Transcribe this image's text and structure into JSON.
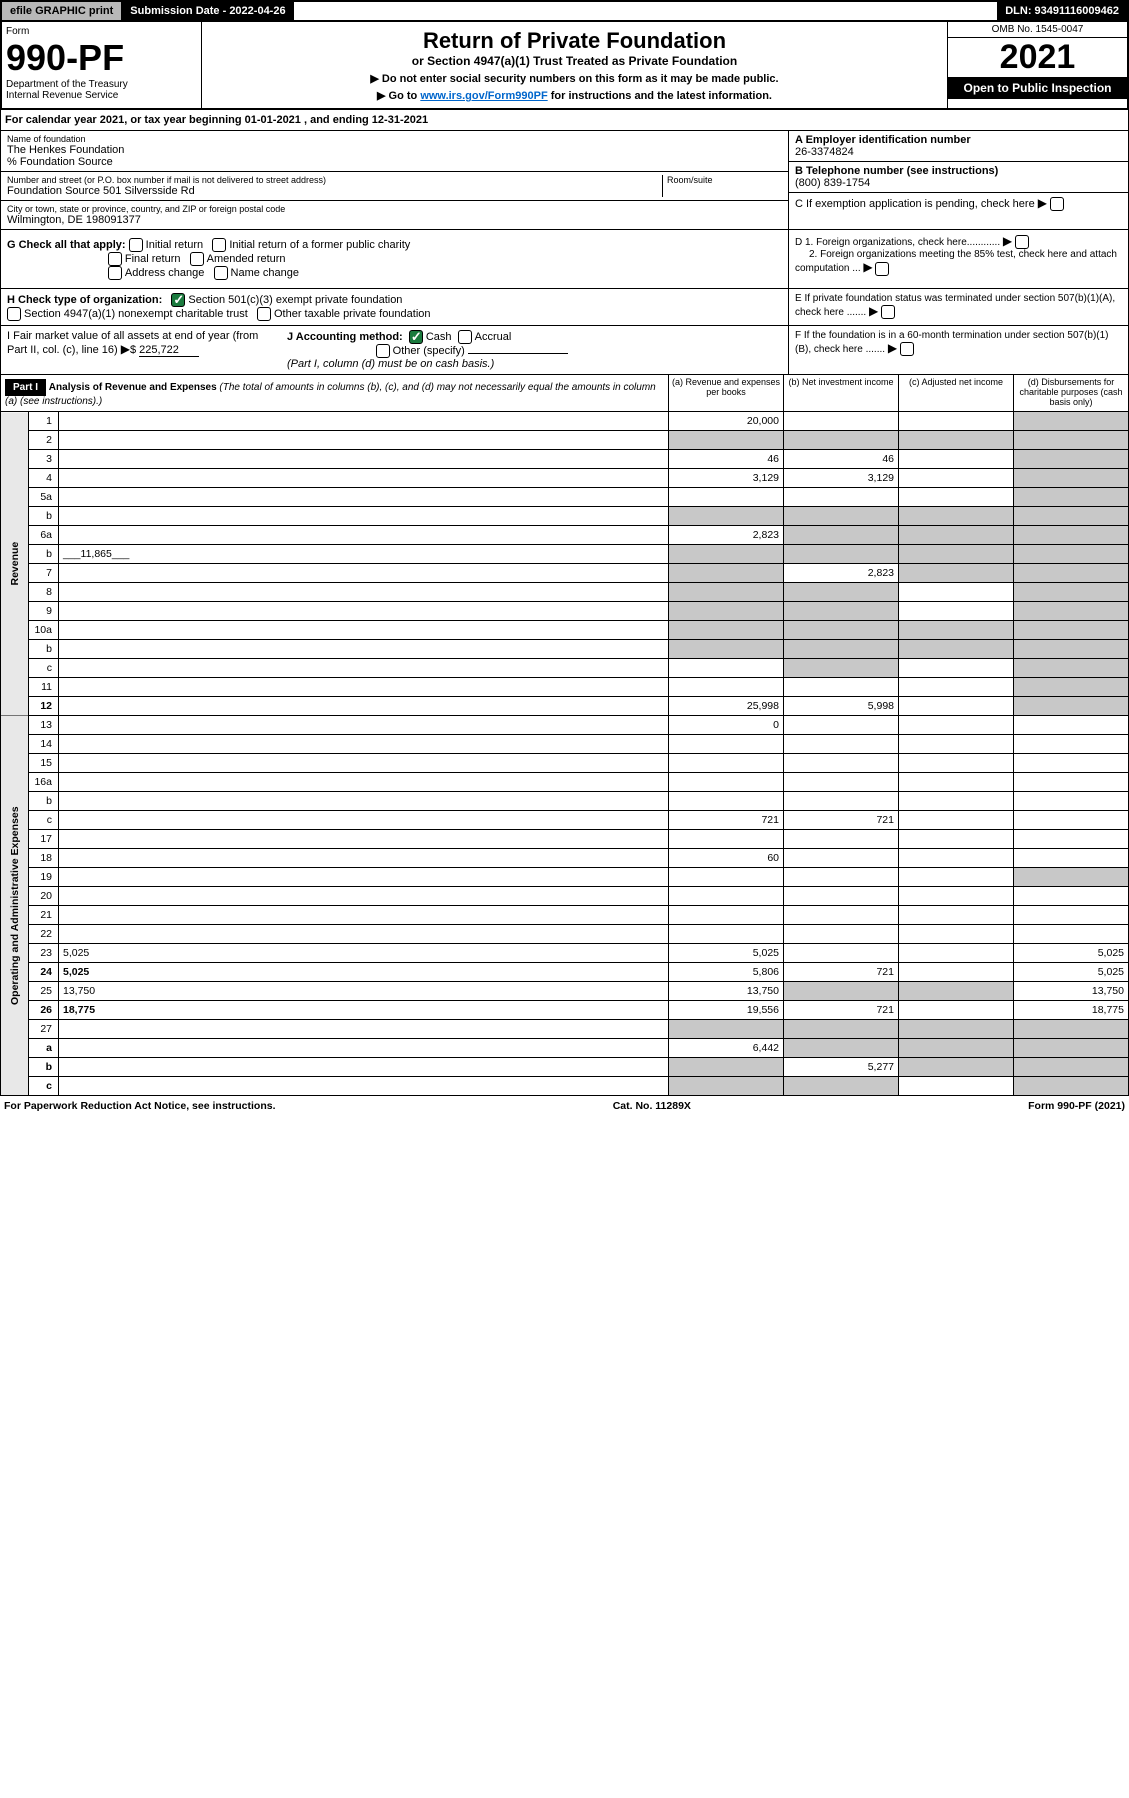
{
  "top": {
    "efile": "efile GRAPHIC print",
    "submission": "Submission Date - 2022-04-26",
    "dln": "DLN: 93491116009462"
  },
  "header": {
    "form_label": "Form",
    "form_num": "990-PF",
    "dept": "Department of the Treasury",
    "irs": "Internal Revenue Service",
    "title": "Return of Private Foundation",
    "subtitle": "or Section 4947(a)(1) Trust Treated as Private Foundation",
    "note1": "▶ Do not enter social security numbers on this form as it may be made public.",
    "note2_pre": "▶ Go to ",
    "note2_link": "www.irs.gov/Form990PF",
    "note2_post": " for instructions and the latest information.",
    "omb": "OMB No. 1545-0047",
    "year": "2021",
    "inspection": "Open to Public Inspection"
  },
  "calyear": "For calendar year 2021, or tax year beginning 01-01-2021                    , and ending 12-31-2021",
  "foundation": {
    "name_label": "Name of foundation",
    "name": "The Henkes Foundation",
    "care_of": "% Foundation Source",
    "addr_label": "Number and street (or P.O. box number if mail is not delivered to street address)",
    "addr": "Foundation Source 501 Silversside Rd",
    "room_label": "Room/suite",
    "city_label": "City or town, state or province, country, and ZIP or foreign postal code",
    "city": "Wilmington, DE  198091377",
    "ein_label": "A Employer identification number",
    "ein": "26-3374824",
    "phone_label": "B Telephone number (see instructions)",
    "phone": "(800) 839-1754",
    "c_label": "C If exemption application is pending, check here",
    "d1": "D 1. Foreign organizations, check here............",
    "d2": "2. Foreign organizations meeting the 85% test, check here and attach computation ...",
    "e": "E  If private foundation status was terminated under section 507(b)(1)(A), check here .......",
    "f": "F  If the foundation is in a 60-month termination under section 507(b)(1)(B), check here .......",
    "g_label": "G Check all that apply:",
    "g_initial": "Initial return",
    "g_initial_former": "Initial return of a former public charity",
    "g_final": "Final return",
    "g_amended": "Amended return",
    "g_address": "Address change",
    "g_name": "Name change",
    "h_label": "H Check type of organization:",
    "h_501c3": "Section 501(c)(3) exempt private foundation",
    "h_4947": "Section 4947(a)(1) nonexempt charitable trust",
    "h_other": "Other taxable private foundation",
    "i_label": "I Fair market value of all assets at end of year (from Part II, col. (c), line 16)",
    "i_val": "225,722",
    "j_label": "J Accounting method:",
    "j_cash": "Cash",
    "j_accrual": "Accrual",
    "j_other": "Other (specify)",
    "j_note": "(Part I, column (d) must be on cash basis.)"
  },
  "part1": {
    "label": "Part I",
    "title": "Analysis of Revenue and Expenses",
    "title_note": "(The total of amounts in columns (b), (c), and (d) may not necessarily equal the amounts in column (a) (see instructions).)",
    "col_a": "(a)   Revenue and expenses per books",
    "col_b": "(b)  Net investment income",
    "col_c": "(c)  Adjusted net income",
    "col_d": "(d)  Disbursements for charitable purposes (cash basis only)"
  },
  "sections": {
    "revenue": "Revenue",
    "opexp": "Operating and Administrative Expenses"
  },
  "lines": [
    {
      "n": "1",
      "d": "",
      "a": "20,000",
      "b": "",
      "c": "",
      "shade_c": false,
      "shade_d": true
    },
    {
      "n": "2",
      "d": "",
      "a": "",
      "b": "",
      "c": "",
      "shade_a": true,
      "shade_b": true,
      "shade_c": true,
      "shade_d": true,
      "dots": true
    },
    {
      "n": "3",
      "d": "",
      "a": "46",
      "b": "46",
      "c": "",
      "shade_d": true
    },
    {
      "n": "4",
      "d": "",
      "a": "3,129",
      "b": "3,129",
      "c": "",
      "shade_d": true,
      "dots": true
    },
    {
      "n": "5a",
      "d": "",
      "a": "",
      "b": "",
      "c": "",
      "shade_d": true,
      "dots": true
    },
    {
      "n": "b",
      "d": "",
      "a": "",
      "b": "",
      "c": "",
      "shade_a": true,
      "shade_b": true,
      "shade_c": true,
      "shade_d": true,
      "inline_box": true
    },
    {
      "n": "6a",
      "d": "",
      "a": "2,823",
      "b": "",
      "c": "",
      "shade_b": true,
      "shade_c": true,
      "shade_d": true
    },
    {
      "n": "b",
      "d": "",
      "a": "",
      "b": "",
      "c": "",
      "shade_a": true,
      "shade_b": true,
      "shade_c": true,
      "shade_d": true,
      "inline_val": "11,865"
    },
    {
      "n": "7",
      "d": "",
      "a": "",
      "b": "2,823",
      "c": "",
      "shade_a": true,
      "shade_c": true,
      "shade_d": true,
      "dots": true
    },
    {
      "n": "8",
      "d": "",
      "a": "",
      "b": "",
      "c": "",
      "shade_a": true,
      "shade_b": true,
      "shade_d": true,
      "dots": true
    },
    {
      "n": "9",
      "d": "",
      "a": "",
      "b": "",
      "c": "",
      "shade_a": true,
      "shade_b": true,
      "shade_d": true,
      "dots": true
    },
    {
      "n": "10a",
      "d": "",
      "a": "",
      "b": "",
      "c": "",
      "shade_a": true,
      "shade_b": true,
      "shade_c": true,
      "shade_d": true,
      "inline_box": true
    },
    {
      "n": "b",
      "d": "",
      "a": "",
      "b": "",
      "c": "",
      "shade_a": true,
      "shade_b": true,
      "shade_c": true,
      "shade_d": true,
      "inline_box": true,
      "dots": true
    },
    {
      "n": "c",
      "d": "",
      "a": "",
      "b": "",
      "c": "",
      "shade_b": true,
      "shade_d": true,
      "dots": true
    },
    {
      "n": "11",
      "d": "",
      "a": "",
      "b": "",
      "c": "",
      "shade_d": true,
      "dots": true
    },
    {
      "n": "12",
      "d": "",
      "a": "25,998",
      "b": "5,998",
      "c": "",
      "shade_d": true,
      "bold": true,
      "dots": true
    },
    {
      "n": "13",
      "d": "",
      "a": "0",
      "b": "",
      "c": ""
    },
    {
      "n": "14",
      "d": "",
      "a": "",
      "b": "",
      "c": "",
      "dots": true
    },
    {
      "n": "15",
      "d": "",
      "a": "",
      "b": "",
      "c": "",
      "dots": true
    },
    {
      "n": "16a",
      "d": "",
      "a": "",
      "b": "",
      "c": "",
      "dots": true
    },
    {
      "n": "b",
      "d": "",
      "a": "",
      "b": "",
      "c": "",
      "dots": true
    },
    {
      "n": "c",
      "d": "",
      "a": "721",
      "b": "721",
      "c": "",
      "dots": true
    },
    {
      "n": "17",
      "d": "",
      "a": "",
      "b": "",
      "c": "",
      "dots": true
    },
    {
      "n": "18",
      "d": "",
      "a": "60",
      "b": "",
      "c": "",
      "dots": true
    },
    {
      "n": "19",
      "d": "",
      "a": "",
      "b": "",
      "c": "",
      "shade_d": true,
      "dots": true
    },
    {
      "n": "20",
      "d": "",
      "a": "",
      "b": "",
      "c": "",
      "dots": true
    },
    {
      "n": "21",
      "d": "",
      "a": "",
      "b": "",
      "c": "",
      "dots": true
    },
    {
      "n": "22",
      "d": "",
      "a": "",
      "b": "",
      "c": "",
      "dots": true
    },
    {
      "n": "23",
      "d": "5,025",
      "a": "5,025",
      "b": "",
      "c": "",
      "dots": true
    },
    {
      "n": "24",
      "d": "5,025",
      "a": "5,806",
      "b": "721",
      "c": "",
      "bold": true,
      "dots": true
    },
    {
      "n": "25",
      "d": "13,750",
      "a": "13,750",
      "b": "",
      "c": "",
      "shade_b": true,
      "shade_c": true,
      "dots": true
    },
    {
      "n": "26",
      "d": "18,775",
      "a": "19,556",
      "b": "721",
      "c": "",
      "bold": true
    },
    {
      "n": "27",
      "d": "",
      "a": "",
      "b": "",
      "c": "",
      "shade_a": true,
      "shade_b": true,
      "shade_c": true,
      "shade_d": true
    },
    {
      "n": "a",
      "d": "",
      "a": "6,442",
      "b": "",
      "c": "",
      "shade_b": true,
      "shade_c": true,
      "shade_d": true,
      "bold": true
    },
    {
      "n": "b",
      "d": "",
      "a": "",
      "b": "5,277",
      "c": "",
      "shade_a": true,
      "shade_c": true,
      "shade_d": true,
      "bold": true
    },
    {
      "n": "c",
      "d": "",
      "a": "",
      "b": "",
      "c": "",
      "shade_a": true,
      "shade_b": true,
      "shade_d": true,
      "bold": true,
      "dots": true
    }
  ],
  "footer": {
    "left": "For Paperwork Reduction Act Notice, see instructions.",
    "mid": "Cat. No. 11289X",
    "right": "Form 990-PF (2021)"
  }
}
